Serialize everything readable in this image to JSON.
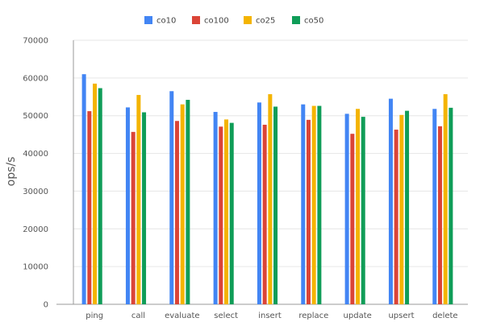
{
  "chart_data": {
    "type": "bar",
    "title": "",
    "xlabel": "",
    "ylabel": "ops/s",
    "ylim": [
      0,
      70000
    ],
    "yticks": [
      "0",
      "10000",
      "20000",
      "30000",
      "40000",
      "50000",
      "60000",
      "70000"
    ],
    "categories": [
      "ping",
      "call",
      "evaluate",
      "select",
      "insert",
      "replace",
      "update",
      "upsert",
      "delete"
    ],
    "series": [
      {
        "name": "co10",
        "color": "#4285f4",
        "values": [
          61000,
          52200,
          56500,
          51000,
          53500,
          53000,
          50500,
          54500,
          51800
        ]
      },
      {
        "name": "co100",
        "color": "#db4437",
        "values": [
          51200,
          45700,
          48600,
          47100,
          47600,
          48900,
          45200,
          46300,
          47200
        ]
      },
      {
        "name": "co25",
        "color": "#f4b400",
        "values": [
          58500,
          55500,
          53000,
          49000,
          55700,
          52600,
          51800,
          50200,
          55700
        ]
      },
      {
        "name": "co50",
        "color": "#0f9d58",
        "values": [
          57300,
          50900,
          54200,
          48100,
          52400,
          52600,
          49700,
          51300,
          52100
        ]
      }
    ],
    "grid": true,
    "legend_position": "top"
  }
}
